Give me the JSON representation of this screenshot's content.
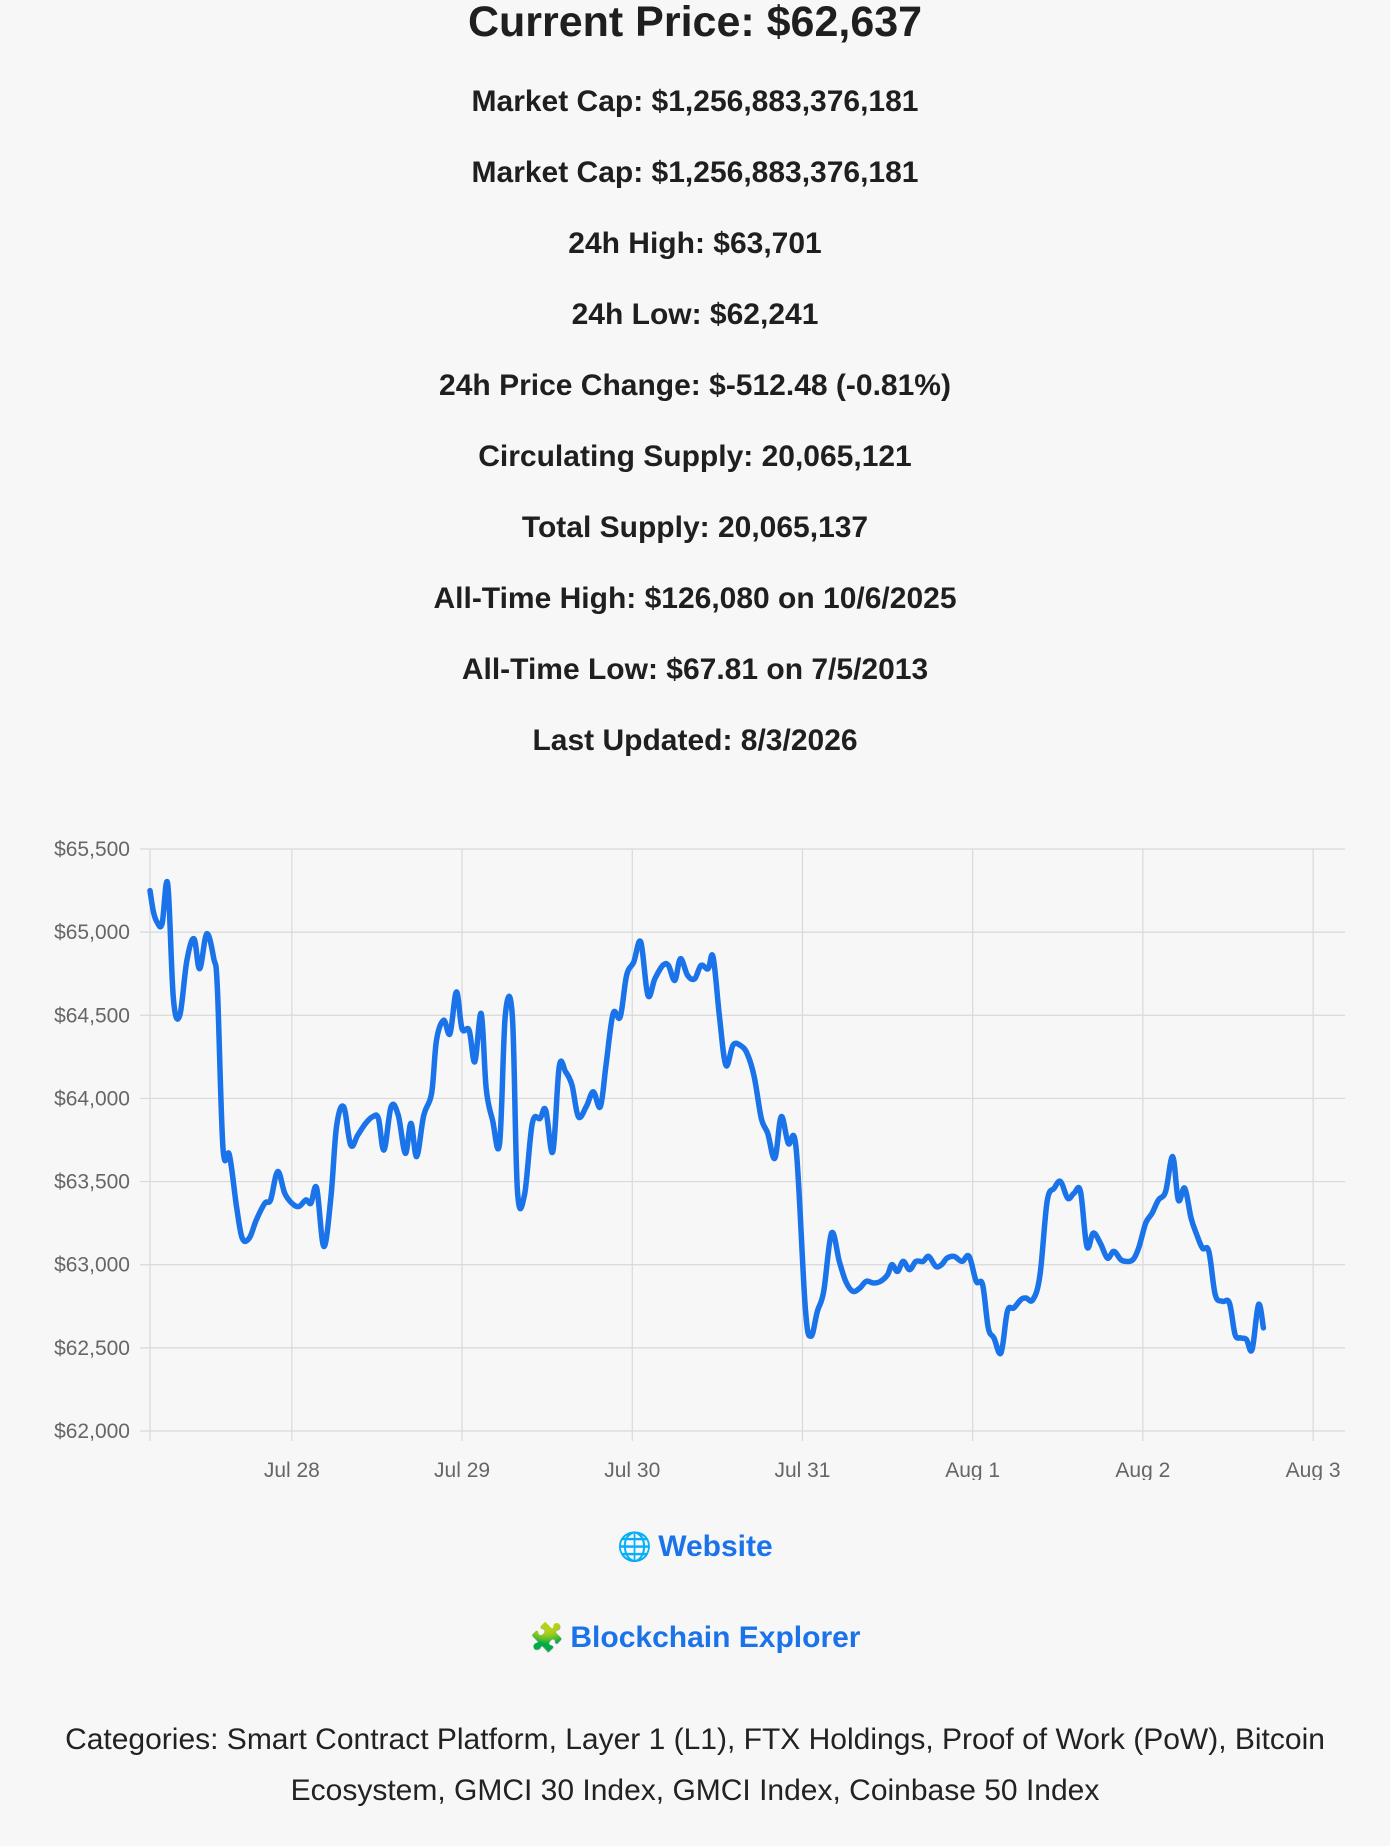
{
  "header": {
    "current_price": "Current Price: $62,637"
  },
  "stats": [
    "Market Cap: $1,256,883,376,181",
    "Market Cap: $1,256,883,376,181",
    "24h High: $63,701",
    "24h Low: $62,241",
    "24h Price Change: $-512.48 (-0.81%)",
    "Circulating Supply: 20,065,121",
    "Total Supply: 20,065,137",
    "All-Time High: $126,080 on 10/6/2025",
    "All-Time Low: $67.81 on 7/5/2013",
    "Last Updated: 8/3/2026"
  ],
  "links": {
    "website": {
      "icon": "globe-icon",
      "glyph": "🌐",
      "label": "Website"
    },
    "explorer": {
      "icon": "puzzle-icon",
      "glyph": "🧩",
      "label": "Blockchain Explorer"
    }
  },
  "categories_text": "Categories: Smart Contract Platform, Layer 1 (L1), FTX Holdings, Proof of Work (PoW), Bitcoin Ecosystem, GMCI 30 Index, GMCI Index, Coinbase 50 Index",
  "colors": {
    "line": "#1a73e8",
    "grid": "#d9d9d9",
    "link": "#1a73e8",
    "background": "#f7f7f8"
  },
  "chart_data": {
    "type": "line",
    "ylim": [
      62000,
      65500
    ],
    "y_ticks": [
      62000,
      62500,
      63000,
      63500,
      64000,
      64500,
      65000,
      65500
    ],
    "y_tick_labels": [
      "$62,000",
      "$62,500",
      "$63,000",
      "$63,500",
      "$64,000",
      "$64,500",
      "$65,000",
      "$65,500"
    ],
    "x_range_hours": [
      0,
      168.5
    ],
    "x_ticks": [
      {
        "label": "Jul 28",
        "hour": 20
      },
      {
        "label": "Jul 29",
        "hour": 44
      },
      {
        "label": "Jul 30",
        "hour": 68
      },
      {
        "label": "Jul 31",
        "hour": 92
      },
      {
        "label": "Aug 1",
        "hour": 116
      },
      {
        "label": "Aug 2",
        "hour": 140
      },
      {
        "label": "Aug 3",
        "hour": 164
      }
    ],
    "grid": true,
    "legend": "none",
    "points": [
      [
        0,
        65250
      ],
      [
        0.5,
        65120
      ],
      [
        1,
        65060
      ],
      [
        1.7,
        65050
      ],
      [
        2.5,
        65290
      ],
      [
        3.3,
        64600
      ],
      [
        4.2,
        64500
      ],
      [
        5.2,
        64830
      ],
      [
        6.2,
        64960
      ],
      [
        7,
        64780
      ],
      [
        8,
        64990
      ],
      [
        9,
        64840
      ],
      [
        9.5,
        64660
      ],
      [
        10.3,
        63700
      ],
      [
        11.2,
        63660
      ],
      [
        12.2,
        63350
      ],
      [
        13,
        63160
      ],
      [
        14,
        63160
      ],
      [
        15,
        63270
      ],
      [
        16.2,
        63370
      ],
      [
        17,
        63390
      ],
      [
        18,
        63560
      ],
      [
        19,
        63430
      ],
      [
        20,
        63370
      ],
      [
        21,
        63350
      ],
      [
        22,
        63390
      ],
      [
        22.7,
        63370
      ],
      [
        23.5,
        63460
      ],
      [
        24.5,
        63110
      ],
      [
        25.5,
        63400
      ],
      [
        26.3,
        63830
      ],
      [
        27.3,
        63950
      ],
      [
        28.3,
        63720
      ],
      [
        29.3,
        63780
      ],
      [
        30.4,
        63850
      ],
      [
        31.4,
        63890
      ],
      [
        32.2,
        63880
      ],
      [
        33,
        63690
      ],
      [
        34,
        63950
      ],
      [
        35,
        63900
      ],
      [
        36,
        63670
      ],
      [
        36.8,
        63850
      ],
      [
        37.6,
        63650
      ],
      [
        38.6,
        63900
      ],
      [
        39.7,
        64030
      ],
      [
        40.4,
        64350
      ],
      [
        41.4,
        64470
      ],
      [
        42.3,
        64390
      ],
      [
        43.2,
        64640
      ],
      [
        44,
        64420
      ],
      [
        45,
        64410
      ],
      [
        45.8,
        64220
      ],
      [
        46.7,
        64510
      ],
      [
        47.4,
        64060
      ],
      [
        48.3,
        63870
      ],
      [
        49.3,
        63730
      ],
      [
        50.1,
        64500
      ],
      [
        51.1,
        64490
      ],
      [
        51.8,
        63450
      ],
      [
        52.8,
        63420
      ],
      [
        53.9,
        63850
      ],
      [
        55,
        63880
      ],
      [
        55.8,
        63930
      ],
      [
        56.8,
        63680
      ],
      [
        57.7,
        64190
      ],
      [
        58.6,
        64160
      ],
      [
        59.5,
        64080
      ],
      [
        60.4,
        63890
      ],
      [
        61.5,
        63950
      ],
      [
        62.5,
        64040
      ],
      [
        63.5,
        63950
      ],
      [
        64.3,
        64200
      ],
      [
        65.3,
        64510
      ],
      [
        66.3,
        64490
      ],
      [
        67.2,
        64740
      ],
      [
        68.2,
        64820
      ],
      [
        69.2,
        64940
      ],
      [
        70.2,
        64620
      ],
      [
        71.2,
        64720
      ],
      [
        72.3,
        64800
      ],
      [
        73.1,
        64800
      ],
      [
        74,
        64710
      ],
      [
        74.8,
        64840
      ],
      [
        75.8,
        64740
      ],
      [
        76.8,
        64720
      ],
      [
        77.7,
        64800
      ],
      [
        78.7,
        64780
      ],
      [
        79.4,
        64850
      ],
      [
        80.3,
        64490
      ],
      [
        81.2,
        64200
      ],
      [
        82.2,
        64320
      ],
      [
        83.2,
        64320
      ],
      [
        84.2,
        64270
      ],
      [
        85.2,
        64130
      ],
      [
        86.2,
        63880
      ],
      [
        87.1,
        63790
      ],
      [
        88.1,
        63640
      ],
      [
        89,
        63890
      ],
      [
        90,
        63730
      ],
      [
        91.1,
        63700
      ],
      [
        92.4,
        62740
      ],
      [
        93.2,
        62570
      ],
      [
        94.1,
        62720
      ],
      [
        95,
        62840
      ],
      [
        96.1,
        63190
      ],
      [
        97.2,
        63020
      ],
      [
        98.1,
        62900
      ],
      [
        99.1,
        62840
      ],
      [
        100.1,
        62860
      ],
      [
        101,
        62900
      ],
      [
        102,
        62890
      ],
      [
        103,
        62900
      ],
      [
        104,
        62940
      ],
      [
        104.6,
        63000
      ],
      [
        105.4,
        62960
      ],
      [
        106.2,
        63020
      ],
      [
        107.1,
        62970
      ],
      [
        108,
        63020
      ],
      [
        109,
        63020
      ],
      [
        109.8,
        63050
      ],
      [
        110.8,
        62990
      ],
      [
        111.6,
        63000
      ],
      [
        112.4,
        63040
      ],
      [
        113.4,
        63050
      ],
      [
        114.5,
        63020
      ],
      [
        115.5,
        63050
      ],
      [
        116.5,
        62900
      ],
      [
        117.4,
        62880
      ],
      [
        118.2,
        62620
      ],
      [
        119,
        62560
      ],
      [
        120,
        62470
      ],
      [
        120.9,
        62720
      ],
      [
        121.8,
        62740
      ],
      [
        122.8,
        62790
      ],
      [
        123.5,
        62800
      ],
      [
        124.5,
        62790
      ],
      [
        125.5,
        62940
      ],
      [
        126.5,
        63380
      ],
      [
        127.5,
        63460
      ],
      [
        128.4,
        63500
      ],
      [
        129.4,
        63400
      ],
      [
        130.3,
        63430
      ],
      [
        131.2,
        63440
      ],
      [
        132.1,
        63110
      ],
      [
        133,
        63190
      ],
      [
        134,
        63130
      ],
      [
        135,
        63040
      ],
      [
        135.9,
        63080
      ],
      [
        136.9,
        63030
      ],
      [
        137.7,
        63020
      ],
      [
        138.6,
        63030
      ],
      [
        139.4,
        63100
      ],
      [
        140.4,
        63250
      ],
      [
        141.3,
        63310
      ],
      [
        142.2,
        63390
      ],
      [
        143.2,
        63440
      ],
      [
        144.2,
        63650
      ],
      [
        145,
        63390
      ],
      [
        145.9,
        63460
      ],
      [
        146.8,
        63280
      ],
      [
        147.6,
        63180
      ],
      [
        148.4,
        63100
      ],
      [
        149.3,
        63080
      ],
      [
        150.2,
        62820
      ],
      [
        151.2,
        62780
      ],
      [
        152.2,
        62770
      ],
      [
        153,
        62580
      ],
      [
        153.8,
        62560
      ],
      [
        154.6,
        62550
      ],
      [
        155.4,
        62490
      ],
      [
        156.3,
        62760
      ],
      [
        157,
        62620
      ]
    ]
  }
}
